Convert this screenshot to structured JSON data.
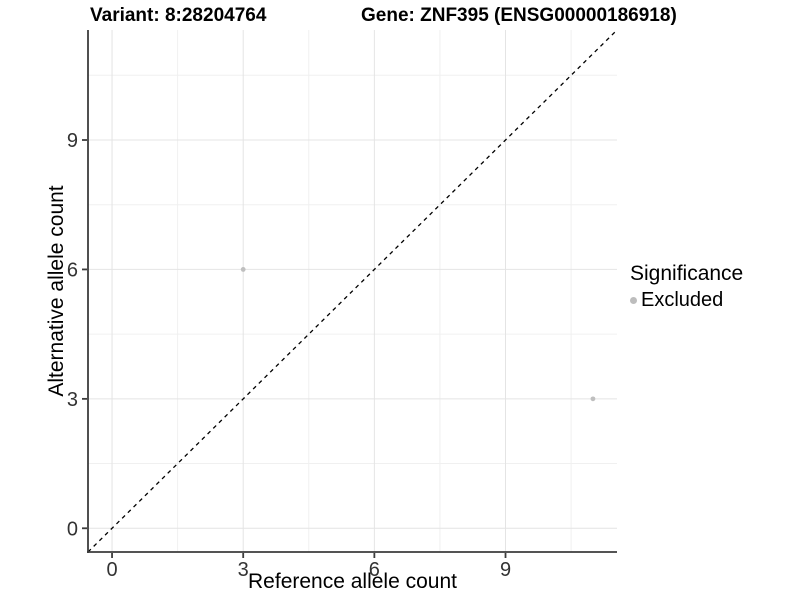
{
  "titles": {
    "variant": "Variant: 8:28204764",
    "gene": "Gene: ZNF395 (ENSG00000186918)"
  },
  "chart_data": {
    "type": "scatter",
    "title_left": "Variant: 8:28204764",
    "title_right": "Gene: ZNF395 (ENSG00000186918)",
    "xlabel": "Reference allele count",
    "ylabel": "Alternative allele count",
    "xlim": [
      -0.55,
      11.55
    ],
    "ylim": [
      -0.55,
      11.55
    ],
    "x_ticks": [
      0,
      3,
      6,
      9
    ],
    "y_ticks": [
      0,
      3,
      6,
      9
    ],
    "x_minor_ticks": [
      1.5,
      4.5,
      7.5,
      10.5
    ],
    "y_minor_ticks": [
      1.5,
      4.5,
      7.5,
      10.5
    ],
    "grid": "on",
    "series": [
      {
        "name": "Excluded",
        "points": [
          {
            "x": 3,
            "y": 6
          },
          {
            "x": 11,
            "y": 3
          }
        ]
      }
    ],
    "identity_line": {
      "type": "y=x",
      "style": "dashed"
    },
    "legend": {
      "title": "Significance",
      "position": "right",
      "items": [
        {
          "label": "Excluded",
          "marker": "circle"
        }
      ]
    }
  },
  "colors": {
    "point": "#bfbfbf",
    "legend_marker": "#bdbdbd",
    "grid_major": "#e4e4e4",
    "grid_minor": "#f0f0f0",
    "axis_line": "#3c3c3c",
    "tick_mark": "#3c3c3c",
    "tick_label": "#333333",
    "identity_line": "#000000",
    "background": "#ffffff"
  }
}
